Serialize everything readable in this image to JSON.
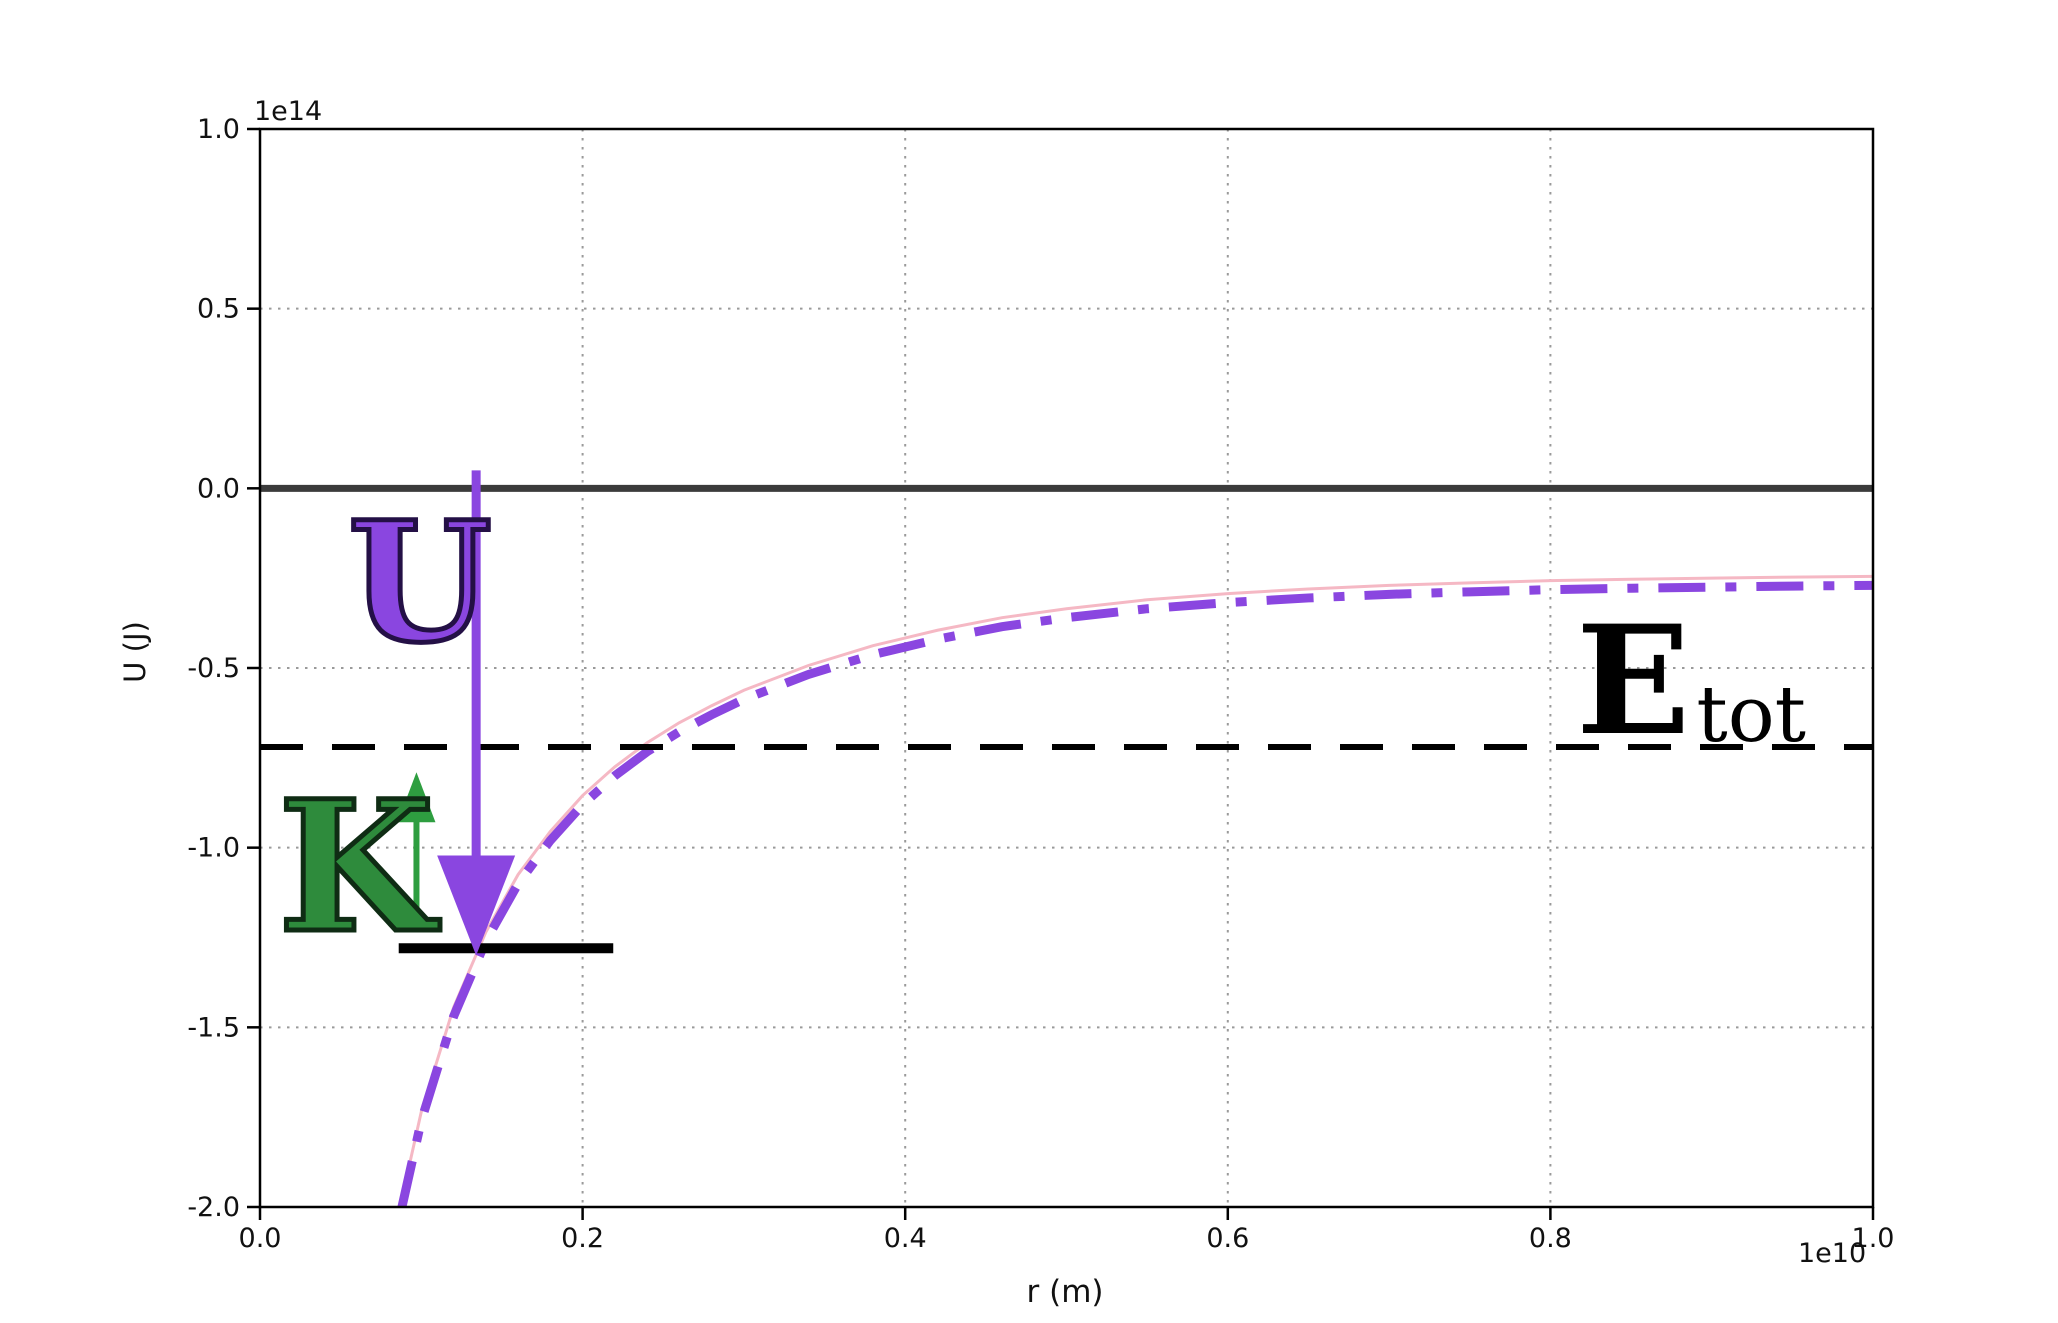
{
  "figure": {
    "background": "#ffffff"
  },
  "chart_data": {
    "type": "line",
    "title": "",
    "xlabel": "r (m)",
    "ylabel": "U (J)",
    "x_scale_label": "1e10",
    "y_scale_label": "1e14",
    "xlim": [
      0.0,
      1.0
    ],
    "ylim": [
      -2.0,
      1.0
    ],
    "xticks": [
      0.0,
      0.2,
      0.4,
      0.6,
      0.8,
      1.0
    ],
    "xtick_labels": [
      "0.0",
      "0.2",
      "0.4",
      "0.6",
      "0.8",
      "1.0"
    ],
    "yticks": [
      1.0,
      0.5,
      0.0,
      -0.5,
      -1.0,
      -1.5,
      -2.0
    ],
    "ytick_labels": [
      "1.0",
      "0.5",
      "0.0",
      "-0.5",
      "-1.0",
      "-1.5",
      "-2.0"
    ],
    "grid": true,
    "grid_style": "dotted",
    "legend": "none",
    "series": [
      {
        "name": "zero-energy-line",
        "color": "#3b3b3b",
        "style": "solid",
        "width": 7,
        "x": [
          0.0,
          1.0
        ],
        "y": [
          0.0,
          0.0
        ]
      },
      {
        "name": "potential-curve-pink",
        "color": "#f5b8c4",
        "style": "solid",
        "width": 3,
        "x": [
          0.088,
          0.1,
          0.12,
          0.14,
          0.16,
          0.18,
          0.2,
          0.22,
          0.24,
          0.26,
          0.28,
          0.3,
          0.34,
          0.38,
          0.42,
          0.46,
          0.5,
          0.55,
          0.6,
          0.65,
          0.7,
          0.75,
          0.8,
          0.85,
          0.9,
          0.95,
          1.0
        ],
        "y": [
          -1.975,
          -1.735,
          -1.445,
          -1.235,
          -1.075,
          -0.955,
          -0.855,
          -0.775,
          -0.708,
          -0.652,
          -0.605,
          -0.562,
          -0.493,
          -0.438,
          -0.395,
          -0.36,
          -0.335,
          -0.31,
          -0.293,
          -0.28,
          -0.27,
          -0.263,
          -0.257,
          -0.253,
          -0.25,
          -0.247,
          -0.245
        ]
      },
      {
        "name": "potential-curve",
        "color": "#8a46e0",
        "style": "dashdot",
        "width": 9,
        "x": [
          0.088,
          0.1,
          0.12,
          0.14,
          0.16,
          0.18,
          0.2,
          0.22,
          0.24,
          0.26,
          0.28,
          0.3,
          0.34,
          0.38,
          0.42,
          0.46,
          0.5,
          0.55,
          0.6,
          0.65,
          0.7,
          0.75,
          0.8,
          0.85,
          0.9,
          0.95,
          1.0
        ],
        "y": [
          -2.0,
          -1.76,
          -1.47,
          -1.26,
          -1.1,
          -0.98,
          -0.88,
          -0.8,
          -0.733,
          -0.677,
          -0.63,
          -0.587,
          -0.518,
          -0.463,
          -0.42,
          -0.385,
          -0.36,
          -0.335,
          -0.318,
          -0.305,
          -0.295,
          -0.288,
          -0.282,
          -0.278,
          -0.275,
          -0.272,
          -0.27
        ]
      },
      {
        "name": "total-energy-line",
        "color": "#000000",
        "style": "dashed",
        "width": 6,
        "x": [
          0.0,
          1.0
        ],
        "y": [
          -0.72,
          -0.72
        ]
      },
      {
        "name": "energy-level-marker",
        "color": "#000000",
        "style": "solid",
        "width": 10,
        "x": [
          0.086,
          0.219
        ],
        "y": [
          -1.28,
          -1.28
        ]
      }
    ],
    "annotations": {
      "U_label": {
        "text": "U",
        "color": "#8a46e0"
      },
      "K_label": {
        "text": "K",
        "color": "#2e8b3c"
      },
      "E_label": {
        "text": "E",
        "sub": "tot",
        "color": "#000000"
      },
      "U_arrow": {
        "name": "potential-arrow",
        "color": "#8a46e0",
        "x": 0.134,
        "y_from": 0.05,
        "y_to": -1.3,
        "shaft_width": 9,
        "head_width": 78,
        "head_length": 100
      },
      "K_arrow": {
        "name": "kinetic-arrow",
        "color": "#2e9e40",
        "x": 0.097,
        "y_from": -1.2,
        "y_to": -0.79,
        "shaft_width": 6,
        "head_width": 38,
        "head_length": 50
      }
    }
  }
}
